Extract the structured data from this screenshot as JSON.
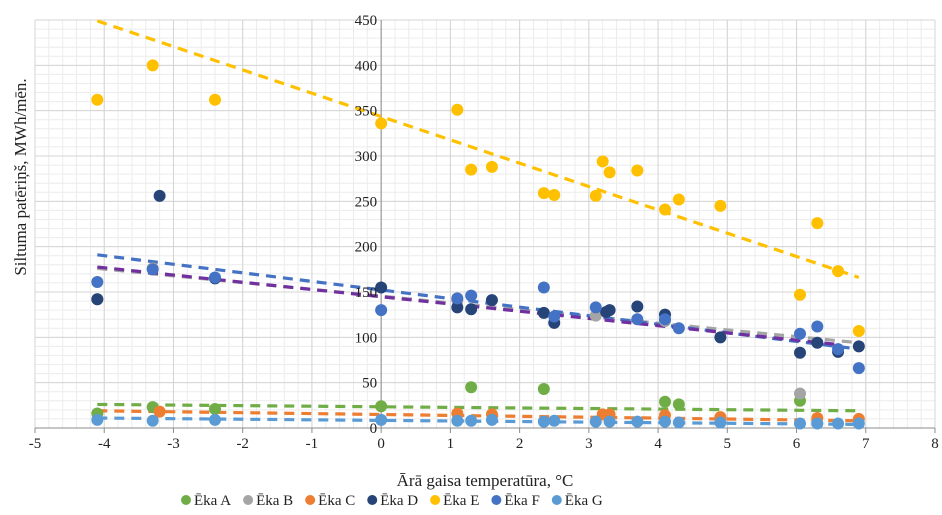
{
  "chart_data": {
    "type": "scatter",
    "xlabel": "Ārā gaisa temperatūra, °C",
    "ylabel": "Siltuma patēriņš, MWh/mēn.",
    "xlim": [
      -5,
      8
    ],
    "ylim": [
      0,
      450
    ],
    "xticks": [
      "-5",
      "-4",
      "-3",
      "-2",
      "-1",
      "0",
      "1",
      "2",
      "3",
      "4",
      "5",
      "6",
      "7",
      "8"
    ],
    "yticks": [
      "0",
      "50",
      "100",
      "150",
      "200",
      "250",
      "300",
      "350",
      "400",
      "450"
    ],
    "grid": true,
    "legend_position": "bottom",
    "series": [
      {
        "name": "Ēka A",
        "color": "#70AD47",
        "x": [
          -4.1,
          -3.3,
          -2.4,
          0.0,
          1.3,
          2.35,
          4.1,
          4.3,
          6.05
        ],
        "y": [
          16,
          23,
          21,
          24,
          45,
          43,
          29,
          26,
          30
        ],
        "trend": [
          [
            -4.1,
            26
          ],
          [
            6.9,
            19
          ]
        ]
      },
      {
        "name": "Ēka B",
        "color": "#A5A5A5",
        "x": [
          -4.1,
          -3.3,
          1.1,
          3.1,
          4.1,
          6.05
        ],
        "y": [
          142,
          176,
          141,
          124,
          118,
          38
        ],
        "trend": [
          [
            -4.1,
            176
          ],
          [
            6.9,
            94
          ]
        ]
      },
      {
        "name": "Ēka C",
        "color": "#ED7D31",
        "x": [
          -3.2,
          1.1,
          1.6,
          3.2,
          3.3,
          4.1,
          4.9,
          6.3,
          6.9
        ],
        "y": [
          18,
          16,
          15,
          15,
          15,
          14,
          12,
          11,
          10
        ],
        "trend": [
          [
            -4.1,
            19
          ],
          [
            6.9,
            8
          ]
        ]
      },
      {
        "name": "Ēka D",
        "color": "#264478",
        "x": [
          -4.1,
          -3.2,
          -2.4,
          0.0,
          1.1,
          1.3,
          1.6,
          2.35,
          2.5,
          3.25,
          3.3,
          3.7,
          4.1,
          4.9,
          6.05,
          6.3,
          6.6,
          6.9
        ],
        "y": [
          142,
          256,
          165,
          155,
          133,
          131,
          141,
          127,
          116,
          128,
          130,
          134,
          125,
          100,
          83,
          94,
          84,
          90
        ],
        "trend": []
      },
      {
        "name": "Ēka E",
        "color": "#FFC000",
        "x": [
          -4.1,
          -3.3,
          -2.4,
          0.0,
          1.1,
          1.3,
          1.6,
          2.35,
          2.5,
          3.1,
          3.2,
          3.3,
          3.7,
          4.1,
          4.3,
          4.9,
          6.05,
          6.3,
          6.6,
          6.9
        ],
        "y": [
          362,
          400,
          362,
          336,
          351,
          285,
          288,
          259,
          257,
          256,
          294,
          282,
          284,
          241,
          252,
          245,
          147,
          226,
          173,
          107
        ],
        "trend": [
          [
            -4.1,
            449
          ],
          [
            6.9,
            166
          ]
        ]
      },
      {
        "name": "Ēka F",
        "color": "#4472C4",
        "x": [
          -4.1,
          -3.3,
          -2.4,
          0.0,
          1.1,
          1.3,
          2.35,
          2.5,
          3.1,
          3.7,
          4.1,
          4.3,
          6.05,
          6.3,
          6.6,
          6.9
        ],
        "y": [
          161,
          175,
          166,
          130,
          143,
          146,
          155,
          123,
          133,
          120,
          120,
          110,
          104,
          112,
          87,
          66
        ],
        "trend": [
          [
            -4.1,
            191
          ],
          [
            6.9,
            87
          ]
        ]
      },
      {
        "name": "Ēka G",
        "color": "#5B9BD5",
        "x": [
          -4.1,
          -3.3,
          -2.4,
          0.0,
          1.1,
          1.3,
          1.6,
          2.35,
          2.5,
          3.1,
          3.3,
          3.7,
          4.1,
          4.3,
          4.9,
          6.05,
          6.3,
          6.6,
          6.9
        ],
        "y": [
          9,
          8,
          9,
          9,
          8,
          8,
          9,
          7,
          8,
          7,
          7,
          7,
          7,
          6,
          6,
          5,
          5,
          5,
          5
        ],
        "trend": [
          [
            -4.1,
            11
          ],
          [
            6.9,
            4
          ]
        ]
      }
    ],
    "extra_trend_colors": {
      "Ēka D": "#7030A0"
    }
  }
}
